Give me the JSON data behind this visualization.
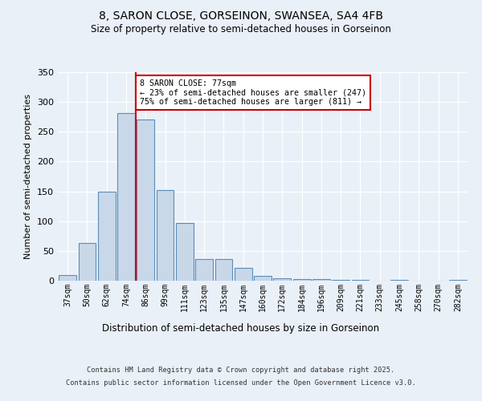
{
  "title1": "8, SARON CLOSE, GORSEINON, SWANSEA, SA4 4FB",
  "title2": "Size of property relative to semi-detached houses in Gorseinon",
  "xlabel": "Distribution of semi-detached houses by size in Gorseinon",
  "ylabel": "Number of semi-detached properties",
  "categories": [
    "37sqm",
    "50sqm",
    "62sqm",
    "74sqm",
    "86sqm",
    "99sqm",
    "111sqm",
    "123sqm",
    "135sqm",
    "147sqm",
    "160sqm",
    "172sqm",
    "184sqm",
    "196sqm",
    "209sqm",
    "221sqm",
    "233sqm",
    "245sqm",
    "258sqm",
    "270sqm",
    "282sqm"
  ],
  "values": [
    10,
    63,
    149,
    281,
    271,
    152,
    97,
    37,
    37,
    22,
    8,
    4,
    3,
    3,
    2,
    1,
    0,
    1,
    0,
    0,
    2
  ],
  "bar_color": "#c8d8e8",
  "bar_edge_color": "#5b8db8",
  "vline_x": 3.5,
  "vline_color": "#cc0000",
  "annotation_title": "8 SARON CLOSE: 77sqm",
  "annotation_line1": "← 23% of semi-detached houses are smaller (247)",
  "annotation_line2": "75% of semi-detached houses are larger (811) →",
  "annotation_box_color": "#ffffff",
  "annotation_box_edge": "#cc0000",
  "ylim": [
    0,
    350
  ],
  "yticks": [
    0,
    50,
    100,
    150,
    200,
    250,
    300,
    350
  ],
  "footer1": "Contains HM Land Registry data © Crown copyright and database right 2025.",
  "footer2": "Contains public sector information licensed under the Open Government Licence v3.0.",
  "bg_color": "#eaf0f8",
  "plot_bg_color": "#eaf0f8"
}
